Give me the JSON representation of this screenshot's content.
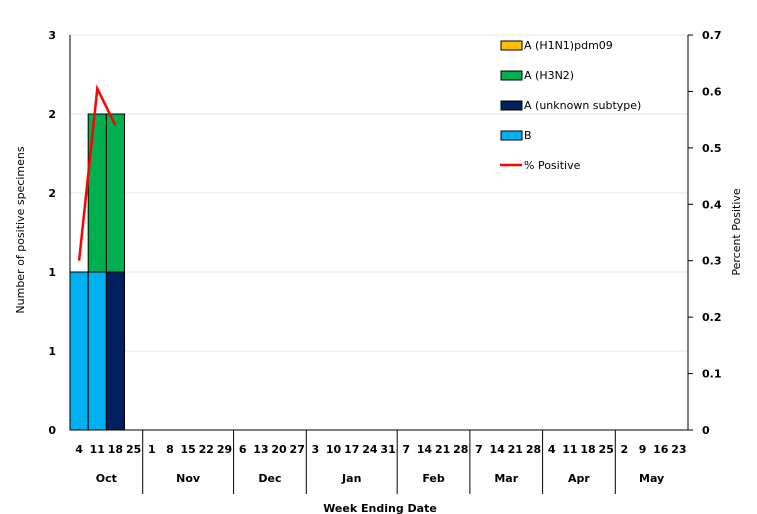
{
  "chart_data": {
    "type": "bar",
    "stacked": true,
    "secondary_type": "line",
    "xlabel": "Week Ending Date",
    "ylabel": "Number of positive specimens",
    "y2label": "Percent Positive",
    "y_ticks": [
      "0",
      "1",
      "1",
      "2",
      "2",
      "3"
    ],
    "ylim": [
      0,
      2.5
    ],
    "y2_ticks": [
      "0",
      "0.1",
      "0.2",
      "0.3",
      "0.4",
      "0.5",
      "0.6",
      "0.7"
    ],
    "y2lim": [
      0,
      0.7
    ],
    "dates": [
      "4",
      "11",
      "18",
      "25",
      "1",
      "8",
      "15",
      "22",
      "29",
      "6",
      "13",
      "20",
      "27",
      "3",
      "10",
      "17",
      "24",
      "31",
      "7",
      "14",
      "21",
      "28",
      "7",
      "14",
      "21",
      "28",
      "4",
      "11",
      "18",
      "25",
      "2",
      "9",
      "16",
      "23"
    ],
    "month_groups": [
      {
        "label": "Oct",
        "start": 0,
        "count": 4
      },
      {
        "label": "Nov",
        "start": 4,
        "count": 5
      },
      {
        "label": "Dec",
        "start": 9,
        "count": 4
      },
      {
        "label": "Jan",
        "start": 13,
        "count": 5
      },
      {
        "label": "Feb",
        "start": 18,
        "count": 4
      },
      {
        "label": "Mar",
        "start": 22,
        "count": 4
      },
      {
        "label": "Apr",
        "start": 26,
        "count": 4
      },
      {
        "label": "May",
        "start": 30,
        "count": 4
      }
    ],
    "series": [
      {
        "name": "B",
        "color": "#00b0f0",
        "values": [
          1,
          1,
          0,
          0,
          0,
          0,
          0,
          0,
          0,
          0,
          0,
          0,
          0,
          0,
          0,
          0,
          0,
          0,
          0,
          0,
          0,
          0,
          0,
          0,
          0,
          0,
          0,
          0,
          0,
          0,
          0,
          0,
          0,
          0
        ]
      },
      {
        "name": "A (unknown subtype)",
        "color": "#002060",
        "values": [
          0,
          0,
          1,
          0,
          0,
          0,
          0,
          0,
          0,
          0,
          0,
          0,
          0,
          0,
          0,
          0,
          0,
          0,
          0,
          0,
          0,
          0,
          0,
          0,
          0,
          0,
          0,
          0,
          0,
          0,
          0,
          0,
          0,
          0
        ]
      },
      {
        "name": "A (H3N2)",
        "color": "#00b050",
        "values": [
          0,
          1,
          1,
          0,
          0,
          0,
          0,
          0,
          0,
          0,
          0,
          0,
          0,
          0,
          0,
          0,
          0,
          0,
          0,
          0,
          0,
          0,
          0,
          0,
          0,
          0,
          0,
          0,
          0,
          0,
          0,
          0,
          0,
          0
        ]
      },
      {
        "name": "A (H1N1)pdm09",
        "color": "#ffc000",
        "values": [
          0,
          0,
          0,
          0,
          0,
          0,
          0,
          0,
          0,
          0,
          0,
          0,
          0,
          0,
          0,
          0,
          0,
          0,
          0,
          0,
          0,
          0,
          0,
          0,
          0,
          0,
          0,
          0,
          0,
          0,
          0,
          0,
          0,
          0
        ]
      }
    ],
    "line": {
      "name": "% Positive",
      "color": "#ff0000",
      "values": [
        0.3,
        0.605,
        0.54
      ]
    },
    "legend": [
      {
        "name": "A (H1N1)pdm09",
        "color": "#ffc000",
        "kind": "box"
      },
      {
        "name": "A (H3N2)",
        "color": "#00b050",
        "kind": "box"
      },
      {
        "name": "A (unknown subtype)",
        "color": "#002060",
        "kind": "box"
      },
      {
        "name": "B",
        "color": "#00b0f0",
        "kind": "box"
      },
      {
        "name": "% Positive",
        "color": "#ff0000",
        "kind": "line"
      }
    ],
    "legend_position": "top-right"
  }
}
